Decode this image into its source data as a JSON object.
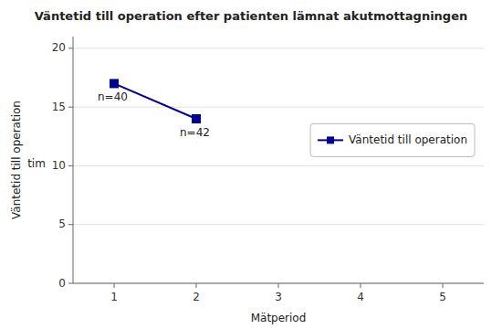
{
  "chart_data": {
    "type": "line",
    "title": "Väntetid till operation efter patienten lämnat akutmottagningen",
    "x_label": "Mätperiod",
    "y_label": "Väntetid till operation",
    "x": [
      1,
      2
    ],
    "series": [
      {
        "name": "Väntetid till operation",
        "color": "#00008B",
        "marker": "square",
        "values": [
          17,
          14
        ]
      }
    ],
    "xlim": [
      0.5,
      5.5
    ],
    "xticks": [
      1,
      2,
      3,
      4,
      5
    ],
    "ylim": [
      0,
      21
    ],
    "yticks": [
      0,
      5,
      10,
      15,
      20
    ],
    "grid": true,
    "legend": "right",
    "annotations": [
      {
        "text": "n=40",
        "x": 1,
        "y": 17
      },
      {
        "text": "n=42",
        "x": 2,
        "y": 14
      },
      {
        "text": "tim"
      }
    ]
  }
}
